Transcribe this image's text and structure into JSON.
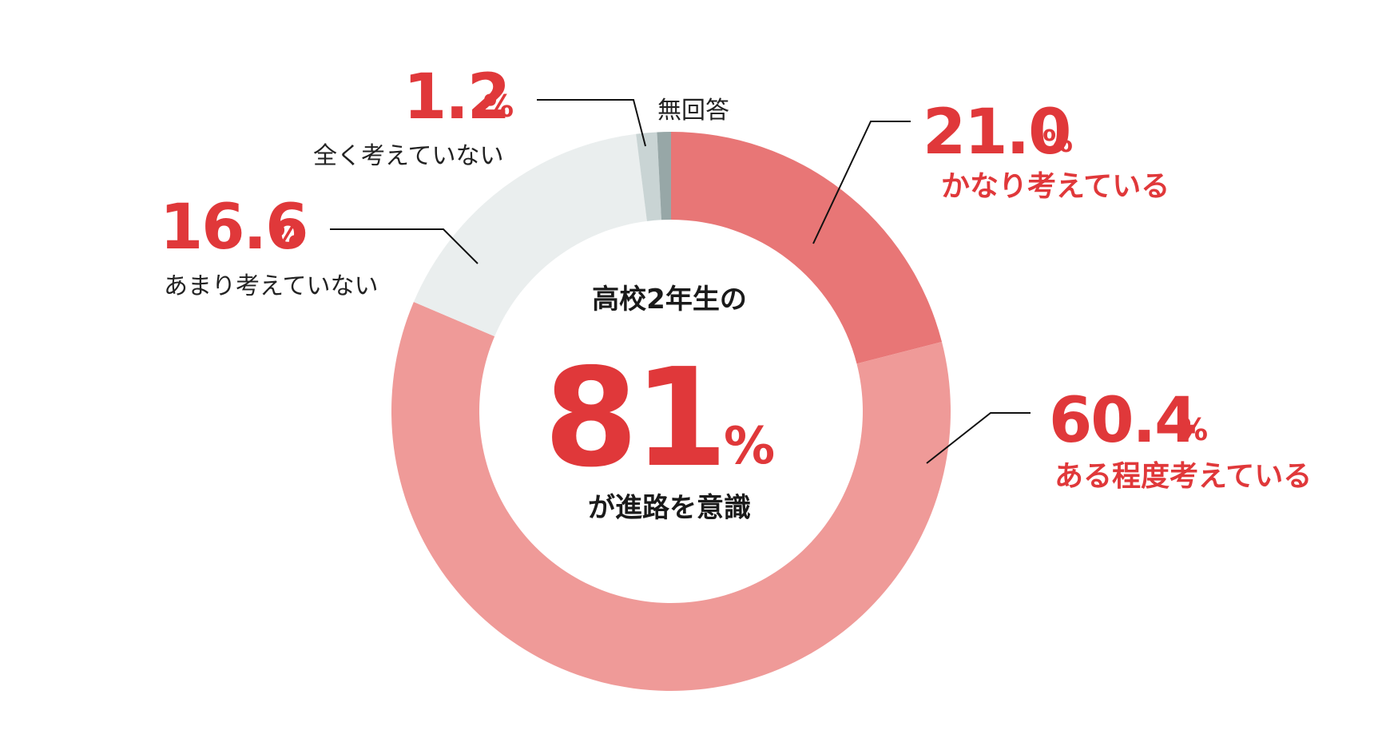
{
  "chart_data": {
    "type": "pie",
    "variant": "donut",
    "center": {
      "top": "高校2年生の",
      "value": "81",
      "unit": "%",
      "bottom": "が進路を意識"
    },
    "slices": [
      {
        "label": "かなり考えている",
        "value": 21.0,
        "value_text": "21.0",
        "color": "#e87676",
        "label_color": "#e0383a"
      },
      {
        "label": "ある程度考えている",
        "value": 60.4,
        "value_text": "60.4",
        "color": "#ef9a98",
        "label_color": "#e0383a"
      },
      {
        "label": "あまり考えていない",
        "value": 16.6,
        "value_text": "16.6",
        "color": "#eaeeee",
        "label_color": "#222222"
      },
      {
        "label": "全く考えていない",
        "value": 1.2,
        "value_text": "1.2",
        "color": "#c9d4d4",
        "label_color": "#222222"
      },
      {
        "label": "無回答",
        "value": 0.8,
        "value_text": "",
        "color": "#97a7a7",
        "label_color": "#222222"
      }
    ],
    "unit": "%"
  }
}
